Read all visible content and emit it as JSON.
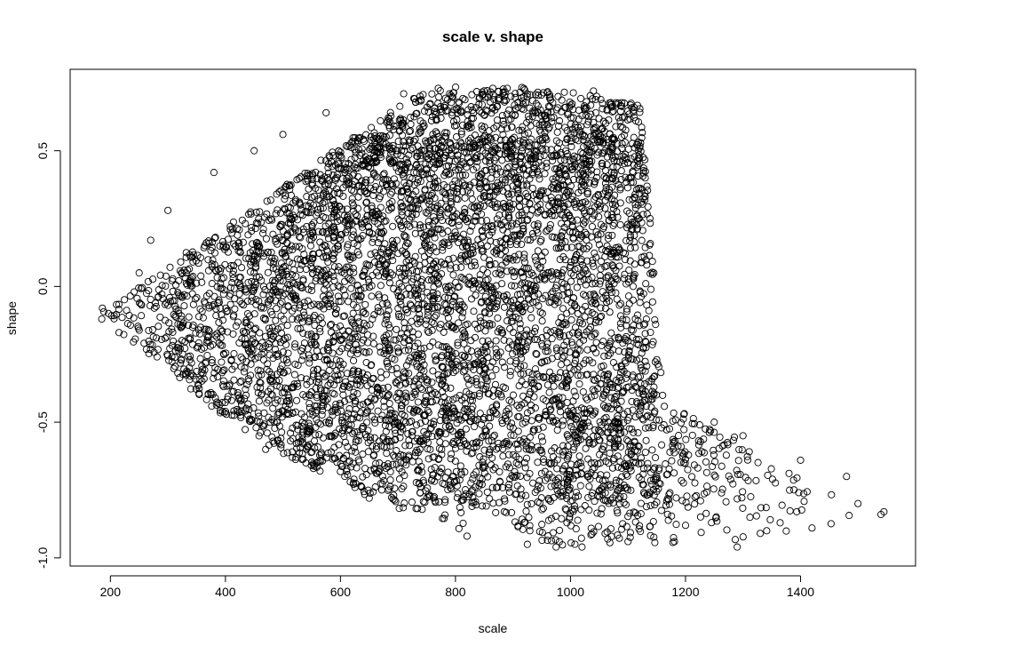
{
  "chart_data": {
    "type": "scatter",
    "title": "scale v. shape",
    "xlabel": "scale",
    "ylabel": "shape",
    "xlim": [
      130,
      1600
    ],
    "ylim": [
      -1.03,
      0.8
    ],
    "x_ticks": [
      200,
      400,
      600,
      800,
      1000,
      1200,
      1400
    ],
    "y_ticks": [
      -1.0,
      -0.5,
      0.0,
      0.5
    ],
    "x_tick_labels": [
      "200",
      "400",
      "600",
      "800",
      "1000",
      "1200",
      "1400"
    ],
    "y_tick_labels": [
      "-1.0",
      "-0.5",
      "0.0",
      "0.5"
    ],
    "marker": "open-circle",
    "marker_color": "#000000",
    "grid": false,
    "legend": "none",
    "n_points_approx": 6000,
    "shape_upper_envelope": [
      [
        185,
        -0.08
      ],
      [
        250,
        0.12
      ],
      [
        300,
        0.28
      ],
      [
        400,
        0.42
      ],
      [
        500,
        0.55
      ],
      [
        600,
        0.63
      ],
      [
        700,
        0.7
      ],
      [
        800,
        0.73
      ],
      [
        900,
        0.73
      ],
      [
        1000,
        0.72
      ],
      [
        1080,
        0.68
      ],
      [
        1120,
        0.56
      ],
      [
        1140,
        0.3
      ],
      [
        1150,
        0.05
      ],
      [
        1130,
        -0.2
      ],
      [
        1200,
        -0.42
      ],
      [
        1300,
        -0.55
      ],
      [
        1400,
        -0.64
      ],
      [
        1480,
        -0.7
      ],
      [
        1545,
        -0.83
      ]
    ],
    "shape_lower_envelope": [
      [
        185,
        -0.12
      ],
      [
        250,
        -0.25
      ],
      [
        300,
        -0.35
      ],
      [
        400,
        -0.48
      ],
      [
        500,
        -0.62
      ],
      [
        600,
        -0.72
      ],
      [
        700,
        -0.82
      ],
      [
        800,
        -0.88
      ],
      [
        900,
        -0.93
      ],
      [
        1000,
        -0.96
      ],
      [
        1100,
        -0.96
      ],
      [
        1200,
        -0.94
      ],
      [
        1300,
        -0.93
      ],
      [
        1400,
        -0.9
      ],
      [
        1480,
        -0.87
      ],
      [
        1545,
        -0.84
      ]
    ],
    "data_points": [
      {
        "x": 185,
        "y": -0.12
      },
      {
        "x": 186,
        "y": -0.08
      },
      {
        "x": 215,
        "y": -0.17
      },
      {
        "x": 250,
        "y": 0.05
      },
      {
        "x": 270,
        "y": 0.17
      },
      {
        "x": 300,
        "y": 0.28
      },
      {
        "x": 380,
        "y": 0.42
      },
      {
        "x": 400,
        "y": -0.46
      },
      {
        "x": 450,
        "y": 0.5
      },
      {
        "x": 470,
        "y": -0.6
      },
      {
        "x": 500,
        "y": 0.56
      },
      {
        "x": 540,
        "y": -0.65
      },
      {
        "x": 575,
        "y": 0.64
      },
      {
        "x": 650,
        "y": -0.78
      },
      {
        "x": 710,
        "y": 0.71
      },
      {
        "x": 770,
        "y": 0.73
      },
      {
        "x": 820,
        "y": -0.92
      },
      {
        "x": 865,
        "y": 0.73
      },
      {
        "x": 890,
        "y": 0.73
      },
      {
        "x": 925,
        "y": -0.95
      },
      {
        "x": 975,
        "y": -0.96
      },
      {
        "x": 1020,
        "y": -0.96
      },
      {
        "x": 1040,
        "y": 0.72
      },
      {
        "x": 1100,
        "y": -0.94
      },
      {
        "x": 1110,
        "y": 0.65
      },
      {
        "x": 1130,
        "y": 0.4
      },
      {
        "x": 1145,
        "y": 0.05
      },
      {
        "x": 1150,
        "y": -0.27
      },
      {
        "x": 1200,
        "y": -0.88
      },
      {
        "x": 1250,
        "y": -0.5
      },
      {
        "x": 1290,
        "y": -0.96
      },
      {
        "x": 1300,
        "y": -0.55
      },
      {
        "x": 1330,
        "y": -0.91
      },
      {
        "x": 1400,
        "y": -0.64
      },
      {
        "x": 1420,
        "y": -0.89
      },
      {
        "x": 1480,
        "y": -0.7
      },
      {
        "x": 1500,
        "y": -0.8
      },
      {
        "x": 1540,
        "y": -0.84
      },
      {
        "x": 1545,
        "y": -0.83
      }
    ]
  }
}
